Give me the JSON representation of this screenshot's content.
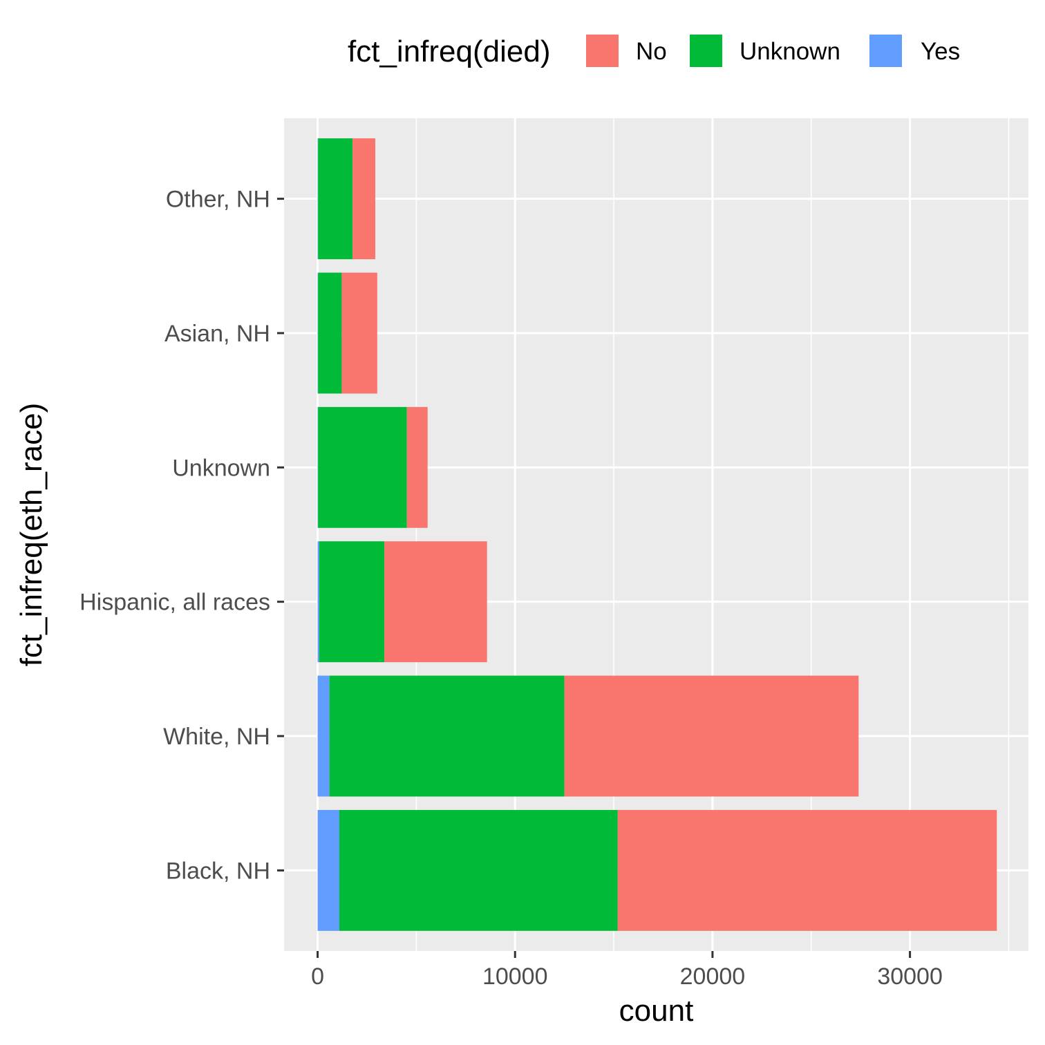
{
  "chart_data": {
    "type": "bar",
    "orientation": "horizontal",
    "stacked": true,
    "categories": [
      "Black, NH",
      "White, NH",
      "Hispanic, all races",
      "Unknown",
      "Asian, NH",
      "Other, NH"
    ],
    "series": [
      {
        "name": "No",
        "color": "#F8766D",
        "values": [
          19200,
          14900,
          5200,
          1050,
          1800,
          1150
        ]
      },
      {
        "name": "Unknown",
        "color": "#00BA38",
        "values": [
          14100,
          11900,
          3300,
          4500,
          1200,
          1750
        ]
      },
      {
        "name": "Yes",
        "color": "#619CFF",
        "values": [
          1100,
          600,
          80,
          20,
          20,
          20
        ]
      }
    ],
    "stack_order_from_axis": [
      "Yes",
      "Unknown",
      "No"
    ],
    "xlabel": "count",
    "ylabel": "fct_infreq(eth_race)",
    "xlim": [
      -1700,
      36000
    ],
    "xticks": [
      0,
      10000,
      20000,
      30000
    ],
    "xtick_labels": [
      "0",
      "10000",
      "20000",
      "30000"
    ],
    "legend": {
      "title": "fct_infreq(died)",
      "position": "top",
      "entries": [
        "No",
        "Unknown",
        "Yes"
      ]
    },
    "grid": true,
    "panel_background": "#EBEBEB",
    "grid_color": "#FFFFFF"
  }
}
